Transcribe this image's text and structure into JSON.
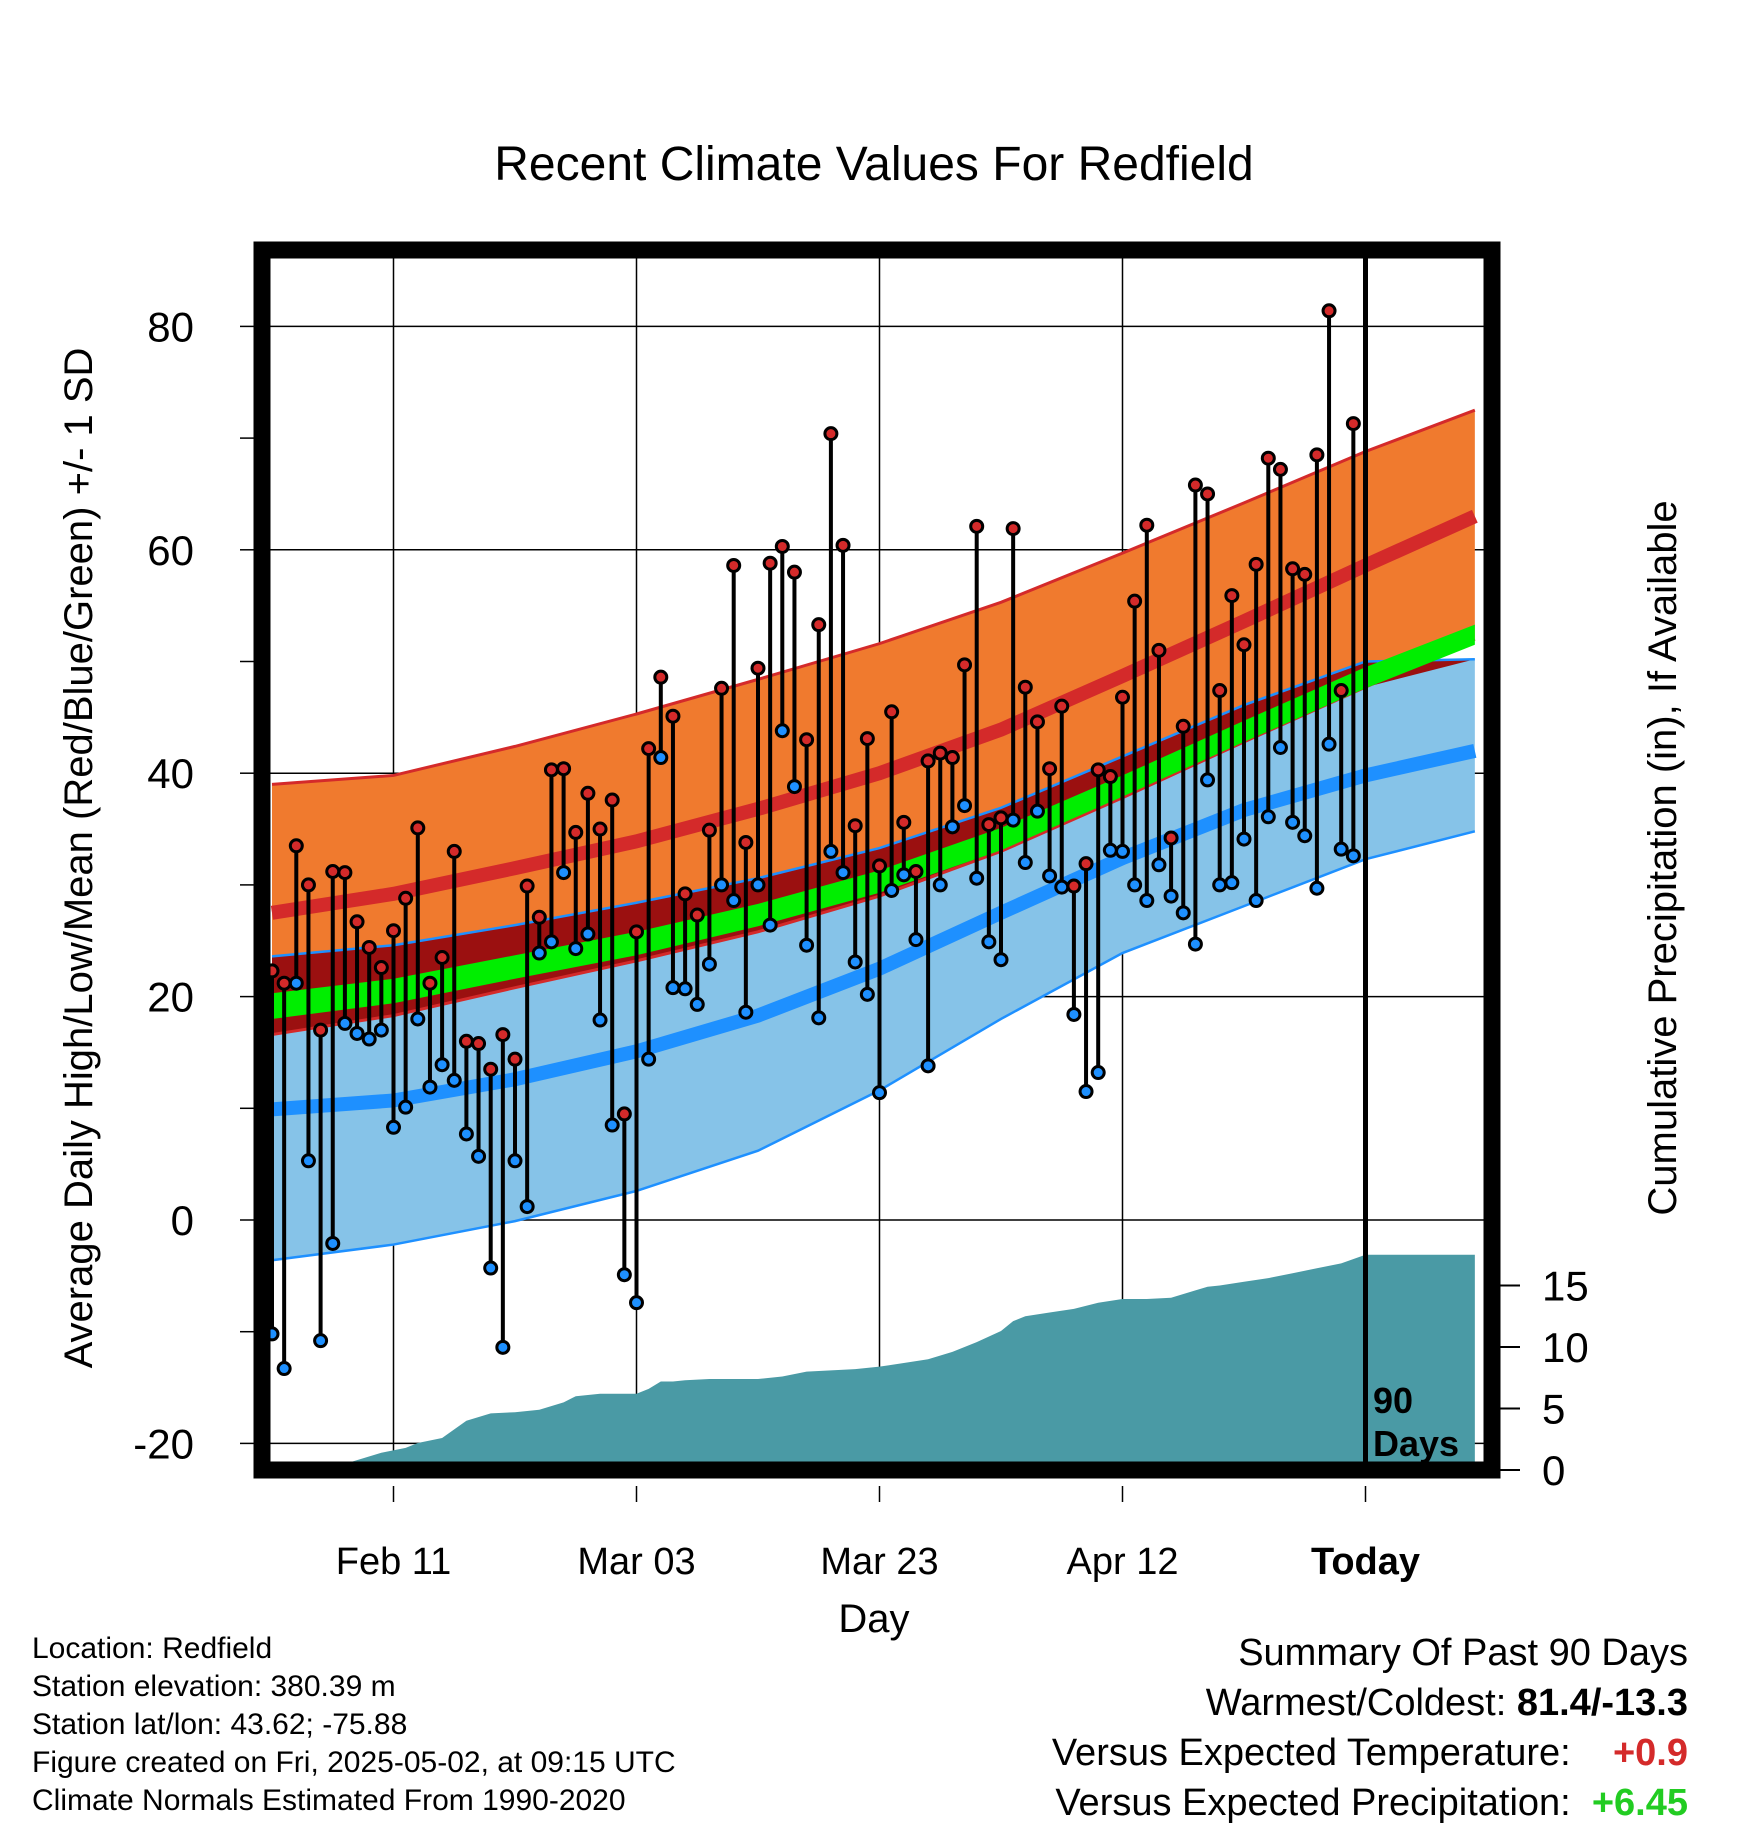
{
  "title": "Recent Climate Values For Redfield",
  "colors": {
    "high_band": "#f07a2e",
    "high_line": "#d42a2a",
    "mean_band": "#00ee00",
    "overlap_band": "#9b1010",
    "low_band": "#86c3e8",
    "low_line": "#1e90ff",
    "precip_fill": "#4a9aa5",
    "high_marker": "#d42a2a",
    "low_marker": "#1e90ff"
  },
  "chart_data": {
    "type": "line",
    "title": "Recent Climate Values For Redfield",
    "xlabel": "Day",
    "ylabel": "Average Daily High/Low/Mean (Red/Blue/Green) +/- 1 SD",
    "y2label": "Cumulative Precipitation (in), If Available",
    "xlim": [
      0,
      99
    ],
    "ylim": [
      -23,
      87
    ],
    "y2lim": [
      0,
      25
    ],
    "x_ticks": [
      {
        "x": 10,
        "label": "Feb 11"
      },
      {
        "x": 30,
        "label": "Mar 03"
      },
      {
        "x": 50,
        "label": "Mar 23"
      },
      {
        "x": 70,
        "label": "Apr 12"
      },
      {
        "x": 90,
        "label": "Today"
      }
    ],
    "y_ticks": [
      -20,
      0,
      20,
      40,
      60,
      80
    ],
    "y2_ticks": [
      0,
      5,
      10,
      15
    ],
    "today_marker": {
      "x": 90,
      "label_line1": "90",
      "label_line2": "Days"
    },
    "normals": {
      "x": [
        0,
        10,
        20,
        30,
        40,
        50,
        60,
        70,
        80,
        90,
        99
      ],
      "high_mean": [
        27.5,
        29.2,
        31.5,
        33.9,
        36.8,
        40.0,
        43.9,
        48.7,
        53.6,
        58.6,
        63.0
      ],
      "high_upper": [
        39.0,
        39.8,
        42.4,
        45.3,
        48.4,
        51.6,
        55.3,
        59.7,
        64.2,
        68.8,
        72.5
      ],
      "high_lower": [
        16.6,
        18.3,
        20.8,
        23.2,
        25.8,
        29.0,
        33.0,
        37.8,
        42.8,
        47.7,
        52.0
      ],
      "mean_upper": [
        20.3,
        21.6,
        23.7,
        25.8,
        28.3,
        31.3,
        35.1,
        39.8,
        44.7,
        49.5,
        53.3
      ],
      "mean_lower": [
        18.0,
        19.4,
        21.6,
        23.7,
        26.3,
        29.3,
        33.1,
        37.9,
        42.8,
        47.6,
        51.5
      ],
      "low_mean": [
        9.9,
        10.7,
        12.6,
        15.1,
        18.3,
        22.5,
        27.5,
        32.4,
        36.7,
        39.8,
        42.0
      ],
      "low_upper": [
        23.6,
        24.6,
        26.4,
        28.4,
        30.6,
        33.3,
        36.9,
        41.5,
        46.1,
        50.0,
        50.2
      ],
      "low_lower": [
        -3.6,
        -2.2,
        -0.1,
        2.6,
        6.2,
        11.6,
        18.0,
        23.9,
        28.1,
        32.3,
        34.8
      ]
    },
    "series": [
      {
        "name": "High",
        "x": [
          0,
          1,
          2,
          3,
          4,
          5,
          6,
          7,
          8,
          9,
          10,
          11,
          12,
          13,
          14,
          15,
          16,
          17,
          18,
          19,
          20,
          21,
          22,
          23,
          24,
          25,
          26,
          27,
          28,
          29,
          30,
          31,
          32,
          33,
          34,
          35,
          36,
          37,
          38,
          39,
          40,
          41,
          42,
          43,
          44,
          45,
          46,
          47,
          48,
          49,
          50,
          51,
          52,
          53,
          54,
          55,
          56,
          57,
          58,
          59,
          60,
          61,
          62,
          63,
          64,
          65,
          66,
          67,
          68,
          69,
          70,
          71,
          72,
          73,
          74,
          75,
          76,
          77,
          78,
          79,
          80,
          81,
          82,
          83,
          84,
          85,
          86,
          87,
          88,
          89
        ],
        "values": [
          22.3,
          21.2,
          33.5,
          30.0,
          17.0,
          31.2,
          31.1,
          26.7,
          24.4,
          22.6,
          25.9,
          28.8,
          35.1,
          21.2,
          23.5,
          33.0,
          16.0,
          15.8,
          13.5,
          16.6,
          14.4,
          29.9,
          27.1,
          40.3,
          40.4,
          34.7,
          38.2,
          35.0,
          37.6,
          9.5,
          25.8,
          42.2,
          48.6,
          45.1,
          29.2,
          27.3,
          34.9,
          47.6,
          58.6,
          33.8,
          49.4,
          58.8,
          60.3,
          58.0,
          43.0,
          53.3,
          70.4,
          60.4,
          35.3,
          43.1,
          31.7,
          45.5,
          35.6,
          31.2,
          41.1,
          41.8,
          41.4,
          49.7,
          62.1,
          35.4,
          36.0,
          61.9,
          47.7,
          44.6,
          40.4,
          46.0,
          29.9,
          31.9,
          40.3,
          39.7,
          46.8,
          55.4,
          62.2,
          51.0,
          34.2,
          44.2,
          65.8,
          65.0,
          47.4,
          55.9,
          51.5,
          58.7,
          68.2,
          67.2,
          58.3,
          57.8,
          68.5,
          81.4,
          47.4,
          71.3
        ]
      },
      {
        "name": "Low",
        "x": [
          0,
          1,
          2,
          3,
          4,
          5,
          6,
          7,
          8,
          9,
          10,
          11,
          12,
          13,
          14,
          15,
          16,
          17,
          18,
          19,
          20,
          21,
          22,
          23,
          24,
          25,
          26,
          27,
          28,
          29,
          30,
          31,
          32,
          33,
          34,
          35,
          36,
          37,
          38,
          39,
          40,
          41,
          42,
          43,
          44,
          45,
          46,
          47,
          48,
          49,
          50,
          51,
          52,
          53,
          54,
          55,
          56,
          57,
          58,
          59,
          60,
          61,
          62,
          63,
          64,
          65,
          66,
          67,
          68,
          69,
          70,
          71,
          72,
          73,
          74,
          75,
          76,
          77,
          78,
          79,
          80,
          81,
          82,
          83,
          84,
          85,
          86,
          87,
          88,
          89
        ],
        "values": [
          -10.2,
          -13.3,
          21.2,
          5.3,
          -10.8,
          -2.1,
          17.6,
          16.7,
          16.2,
          17.0,
          8.3,
          10.1,
          18.0,
          11.9,
          13.9,
          12.5,
          7.7,
          5.7,
          -4.3,
          -11.4,
          5.3,
          1.2,
          23.9,
          24.9,
          31.1,
          24.3,
          25.6,
          17.9,
          8.5,
          -4.9,
          -7.4,
          14.4,
          41.4,
          20.8,
          20.7,
          19.3,
          22.9,
          30.0,
          28.6,
          18.6,
          30.0,
          26.4,
          43.8,
          38.8,
          24.6,
          18.1,
          33.0,
          31.1,
          23.1,
          20.2,
          11.4,
          29.5,
          30.9,
          25.1,
          13.8,
          30.0,
          35.2,
          37.1,
          30.6,
          24.9,
          23.3,
          35.8,
          32.0,
          36.6,
          30.8,
          29.8,
          18.4,
          11.5,
          13.2,
          33.1,
          33.0,
          30.0,
          28.6,
          31.8,
          29.0,
          27.5,
          24.7,
          39.4,
          30.0,
          30.2,
          34.1,
          28.6,
          36.1,
          42.3,
          35.6,
          34.4,
          29.7,
          42.6,
          33.2,
          32.6
        ]
      }
    ],
    "precip_cumulative": {
      "x": [
        2,
        4,
        6,
        7,
        9,
        11,
        12,
        14,
        16,
        18,
        20,
        22,
        24,
        25,
        27,
        29,
        30,
        31,
        32,
        33,
        34,
        36,
        38,
        40,
        42,
        44,
        46,
        48,
        50,
        52,
        54,
        56,
        58,
        60,
        61,
        62,
        64,
        66,
        68,
        70,
        72,
        74,
        76,
        77,
        78,
        80,
        82,
        84,
        86,
        88,
        90,
        99
      ],
      "values": [
        0.1,
        0.2,
        0.5,
        0.8,
        1.4,
        1.8,
        2.2,
        2.6,
        4.0,
        4.6,
        4.7,
        4.9,
        5.5,
        6.0,
        6.2,
        6.2,
        6.2,
        6.6,
        7.2,
        7.2,
        7.3,
        7.4,
        7.4,
        7.4,
        7.6,
        8.0,
        8.1,
        8.2,
        8.4,
        8.7,
        9.0,
        9.6,
        10.4,
        11.3,
        12.1,
        12.5,
        12.8,
        13.1,
        13.6,
        13.9,
        13.9,
        14.0,
        14.6,
        14.9,
        15.0,
        15.3,
        15.6,
        16.0,
        16.4,
        16.8,
        17.5,
        17.5
      ]
    }
  },
  "info": {
    "location": "Location: Redfield",
    "elevation": "Station elevation: 380.39 m",
    "latlon": "Station lat/lon: 43.62; -75.88",
    "created": "Figure created on Fri, 2025-05-02, at 09:15 UTC",
    "normals": "Climate Normals Estimated From 1990-2020"
  },
  "summary": {
    "heading": "Summary Of Past 90 Days",
    "warm_cold_label": "Warmest/Coldest: ",
    "warm_cold_value": "81.4/-13.3",
    "temp_label": "Versus Expected Temperature:",
    "temp_value": "+0.9",
    "precip_label": "Versus Expected Precipitation:",
    "precip_value": "+6.45"
  }
}
